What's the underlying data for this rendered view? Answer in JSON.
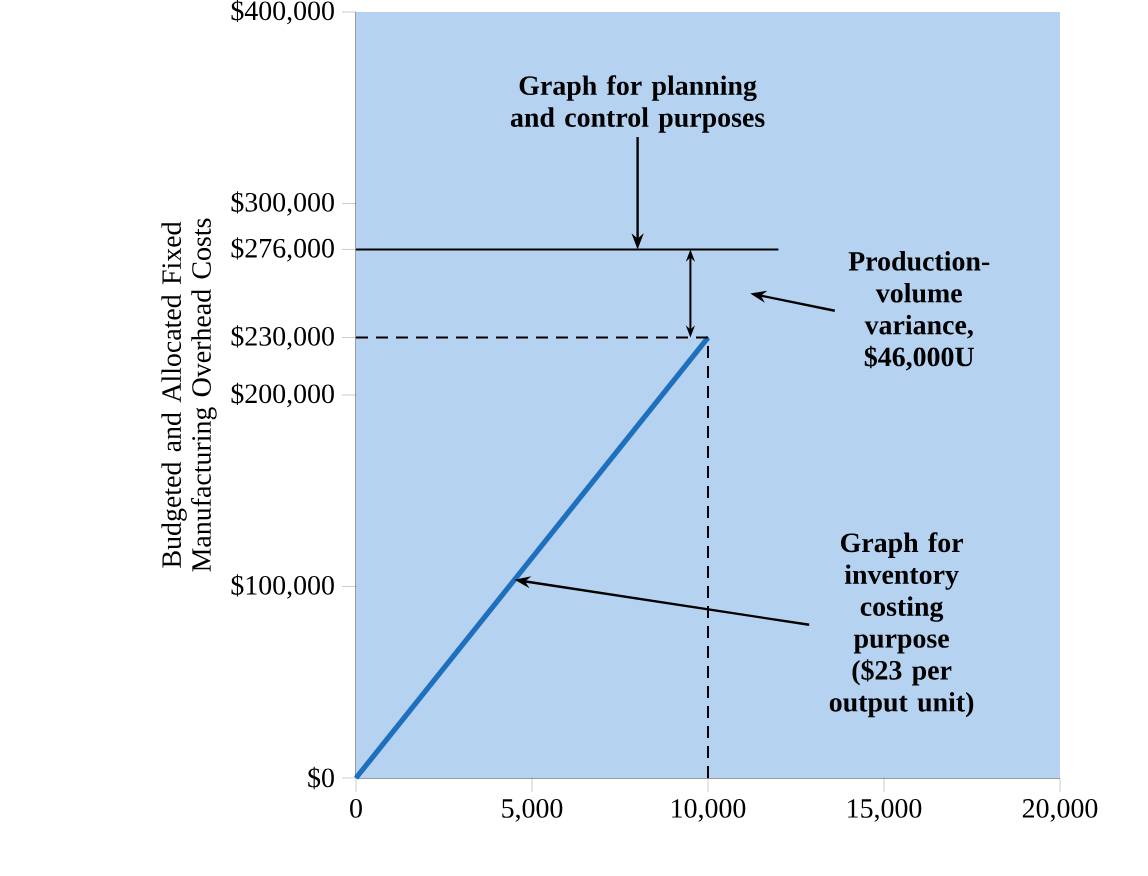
{
  "chart_data": {
    "type": "line",
    "ylabel": "Budgeted and Allocated Fixed Manufacturing Overhead Costs",
    "series": [
      {
        "color": "#1f6fbf",
        "x": [
          0,
          10000
        ],
        "values": [
          0,
          230000
        ]
      },
      {
        "color": "#000000",
        "x": [
          0,
          12000
        ],
        "values": [
          276000,
          276000
        ]
      },
      {
        "color": "#000000",
        "x": [
          0,
          10000
        ],
        "values": [
          230000,
          230000
        ],
        "line_style": "dashed"
      },
      {
        "color": "#000000",
        "x": [
          10000,
          10000
        ],
        "values": [
          0,
          230000
        ],
        "line_style": "dashed"
      }
    ],
    "xlim": [
      0,
      20000
    ],
    "xticks": [
      {
        "value": 0,
        "label": "0"
      },
      {
        "value": 5000,
        "label": "5,000"
      },
      {
        "value": 10000,
        "label": "10,000"
      },
      {
        "value": 15000,
        "label": "15,000"
      },
      {
        "value": 20000,
        "label": "20,000"
      }
    ],
    "ylim": [
      0,
      400000
    ],
    "yticks": [
      {
        "value": 0,
        "label": "$0"
      },
      {
        "value": 100000,
        "label": "$100,000"
      },
      {
        "value": 200000,
        "label": "$200,000"
      },
      {
        "value": 230000,
        "label": "$230,000"
      },
      {
        "value": 276000,
        "label": "$276,000"
      },
      {
        "value": 300000,
        "label": "$300,000"
      },
      {
        "value": 400000,
        "label": "$400,000"
      }
    ],
    "annotations": [
      {
        "text": "Graph for planning and control purposes",
        "x": 8000,
        "y": 276000
      },
      "Production-volume variance, $46,000U",
      {
        "text": "Graph for inventory costing purpose ($23 per output unit)",
        "x": 4500,
        "y": 103500
      }
    ]
  }
}
